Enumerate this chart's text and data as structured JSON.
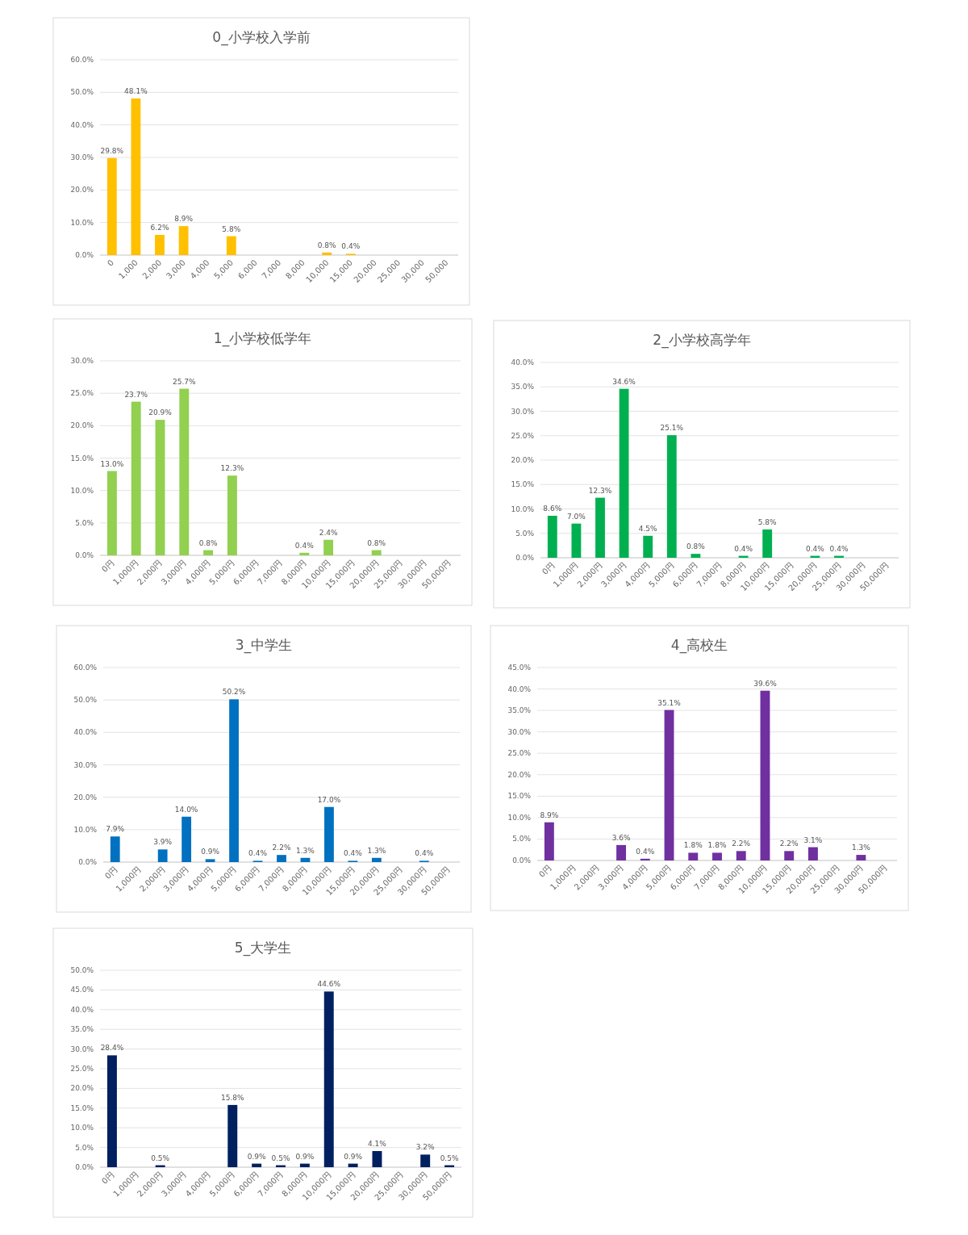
{
  "chart_data": [
    {
      "type": "bar",
      "title": "0_小学校入学前",
      "color": "#ffc000",
      "grid": "y",
      "categories": [
        "0",
        "1,000",
        "2,000",
        "3,000",
        "4,000",
        "5,000",
        "6,000",
        "7,000",
        "8,000",
        "10,000",
        "15,000",
        "20,000",
        "25,000",
        "30,000",
        "50,000"
      ],
      "values": [
        29.8,
        48.1,
        6.2,
        8.9,
        null,
        5.8,
        null,
        null,
        null,
        0.8,
        0.4,
        null,
        null,
        null,
        null
      ],
      "value_labels": [
        "29.8%",
        "48.1%",
        "6.2%",
        "8.9%",
        null,
        "5.8%",
        null,
        null,
        null,
        "0.8%",
        "0.4%",
        null,
        null,
        null,
        null
      ],
      "ylim": [
        0,
        60
      ],
      "yticks": [
        {
          "value": 0,
          "label": "0.0%"
        },
        {
          "value": 10,
          "label": "10.0%"
        },
        {
          "value": 20,
          "label": "20.0%"
        },
        {
          "value": 30,
          "label": "30.0%"
        },
        {
          "value": 40,
          "label": "40.0%"
        },
        {
          "value": 50,
          "label": "50.0%"
        },
        {
          "value": 60,
          "label": "60.0%"
        }
      ]
    },
    {
      "type": "bar",
      "title": "1_小学校低学年",
      "color": "#92d050",
      "grid": "y",
      "categories": [
        "0円",
        "1,000円",
        "2,000円",
        "3,000円",
        "4,000円",
        "5,000円",
        "6,000円",
        "7,000円",
        "8,000円",
        "10,000円",
        "15,000円",
        "20,000円",
        "25,000円",
        "30,000円",
        "50,000円"
      ],
      "values": [
        13.0,
        23.7,
        20.9,
        25.7,
        0.8,
        12.3,
        null,
        null,
        0.4,
        2.4,
        null,
        0.8,
        null,
        null,
        null
      ],
      "value_labels": [
        "13.0%",
        "23.7%",
        "20.9%",
        "25.7%",
        "0.8%",
        "12.3%",
        null,
        null,
        "0.4%",
        "2.4%",
        null,
        "0.8%",
        null,
        null,
        null
      ],
      "ylim": [
        0,
        30
      ],
      "yticks": [
        {
          "value": 0,
          "label": "0.0%"
        },
        {
          "value": 5,
          "label": "5.0%"
        },
        {
          "value": 10,
          "label": "10.0%"
        },
        {
          "value": 15,
          "label": "15.0%"
        },
        {
          "value": 20,
          "label": "20.0%"
        },
        {
          "value": 25,
          "label": "25.0%"
        },
        {
          "value": 30,
          "label": "30.0%"
        }
      ]
    },
    {
      "type": "bar",
      "title": "2_小学校高学年",
      "color": "#00b050",
      "grid": "y",
      "categories": [
        "0円",
        "1,000円",
        "2,000円",
        "3,000円",
        "4,000円",
        "5,000円",
        "6,000円",
        "7,000円",
        "8,000円",
        "10,000円",
        "15,000円",
        "20,000円",
        "25,000円",
        "30,000円",
        "50,000円"
      ],
      "values": [
        8.6,
        7.0,
        12.3,
        34.6,
        4.5,
        25.1,
        0.8,
        null,
        0.4,
        5.8,
        null,
        0.4,
        0.4,
        null,
        null
      ],
      "value_labels": [
        "8.6%",
        "7.0%",
        "12.3%",
        "34.6%",
        "4.5%",
        "25.1%",
        "0.8%",
        null,
        "0.4%",
        "5.8%",
        null,
        "0.4%",
        "0.4%",
        null,
        null
      ],
      "ylim": [
        0,
        40
      ],
      "yticks": [
        {
          "value": 0,
          "label": "0.0%"
        },
        {
          "value": 5,
          "label": "5.0%"
        },
        {
          "value": 10,
          "label": "10.0%"
        },
        {
          "value": 15,
          "label": "15.0%"
        },
        {
          "value": 20,
          "label": "20.0%"
        },
        {
          "value": 25,
          "label": "25.0%"
        },
        {
          "value": 30,
          "label": "30.0%"
        },
        {
          "value": 35,
          "label": "35.0%"
        },
        {
          "value": 40,
          "label": "40.0%"
        }
      ]
    },
    {
      "type": "bar",
      "title": "3_中学生",
      "color": "#0070c0",
      "grid": "y",
      "categories": [
        "0円",
        "1,000円",
        "2,000円",
        "3,000円",
        "4,000円",
        "5,000円",
        "6,000円",
        "7,000円",
        "8,000円",
        "10,000円",
        "15,000円",
        "20,000円",
        "25,000円",
        "30,000円",
        "50,000円"
      ],
      "values": [
        7.9,
        null,
        3.9,
        14.0,
        0.9,
        50.2,
        0.4,
        2.2,
        1.3,
        17.0,
        0.4,
        1.3,
        null,
        0.4,
        null
      ],
      "value_labels": [
        "7.9%",
        null,
        "3.9%",
        "14.0%",
        "0.9%",
        "50.2%",
        "0.4%",
        "2.2%",
        "1.3%",
        "17.0%",
        "0.4%",
        "1.3%",
        null,
        "0.4%",
        null
      ],
      "ylim": [
        0,
        60
      ],
      "yticks": [
        {
          "value": 0,
          "label": "0.0%"
        },
        {
          "value": 10,
          "label": "10.0%"
        },
        {
          "value": 20,
          "label": "20.0%"
        },
        {
          "value": 30,
          "label": "30.0%"
        },
        {
          "value": 40,
          "label": "40.0%"
        },
        {
          "value": 50,
          "label": "50.0%"
        },
        {
          "value": 60,
          "label": "60.0%"
        }
      ]
    },
    {
      "type": "bar",
      "title": "4_高校生",
      "color": "#7030a0",
      "grid": "y",
      "categories": [
        "0円",
        "1,000円",
        "2,000円",
        "3,000円",
        "4,000円",
        "5,000円",
        "6,000円",
        "7,000円",
        "8,000円",
        "10,000円",
        "15,000円",
        "20,000円",
        "25,000円",
        "30,000円",
        "50,000円"
      ],
      "values": [
        8.9,
        null,
        null,
        3.6,
        0.4,
        35.1,
        1.8,
        1.8,
        2.2,
        39.6,
        2.2,
        3.1,
        null,
        1.3,
        null
      ],
      "value_labels": [
        "8.9%",
        null,
        null,
        "3.6%",
        "0.4%",
        "35.1%",
        "1.8%",
        "1.8%",
        "2.2%",
        "39.6%",
        "2.2%",
        "3.1%",
        null,
        "1.3%",
        null
      ],
      "ylim": [
        0,
        45
      ],
      "yticks": [
        {
          "value": 0,
          "label": "0.0%"
        },
        {
          "value": 5,
          "label": "5.0%"
        },
        {
          "value": 10,
          "label": "10.0%"
        },
        {
          "value": 15,
          "label": "15.0%"
        },
        {
          "value": 20,
          "label": "20.0%"
        },
        {
          "value": 25,
          "label": "25.0%"
        },
        {
          "value": 30,
          "label": "30.0%"
        },
        {
          "value": 35,
          "label": "35.0%"
        },
        {
          "value": 40,
          "label": "40.0%"
        },
        {
          "value": 45,
          "label": "45.0%"
        }
      ]
    },
    {
      "type": "bar",
      "title": "5_大学生",
      "color": "#002060",
      "grid": "y",
      "categories": [
        "0円",
        "1,000円",
        "2,000円",
        "3,000円",
        "4,000円",
        "5,000円",
        "6,000円",
        "7,000円",
        "8,000円",
        "10,000円",
        "15,000円",
        "20,000円",
        "25,000円",
        "30,000円",
        "50,000円"
      ],
      "values": [
        28.4,
        null,
        0.5,
        null,
        null,
        15.8,
        0.9,
        0.5,
        0.9,
        44.6,
        0.9,
        4.1,
        null,
        3.2,
        0.5
      ],
      "value_labels": [
        "28.4%",
        null,
        "0.5%",
        null,
        null,
        "15.8%",
        "0.9%",
        "0.5%",
        "0.9%",
        "44.6%",
        "0.9%",
        "4.1%",
        null,
        "3.2%",
        "0.5%"
      ],
      "ylim": [
        0,
        50
      ],
      "yticks": [
        {
          "value": 0,
          "label": "0.0%"
        },
        {
          "value": 5,
          "label": "5.0%"
        },
        {
          "value": 10,
          "label": "10.0%"
        },
        {
          "value": 15,
          "label": "15.0%"
        },
        {
          "value": 20,
          "label": "20.0%"
        },
        {
          "value": 25,
          "label": "25.0%"
        },
        {
          "value": 30,
          "label": "30.0%"
        },
        {
          "value": 35,
          "label": "35.0%"
        },
        {
          "value": 40,
          "label": "40.0%"
        },
        {
          "value": 45,
          "label": "45.0%"
        },
        {
          "value": 50,
          "label": "50.0%"
        }
      ]
    }
  ]
}
